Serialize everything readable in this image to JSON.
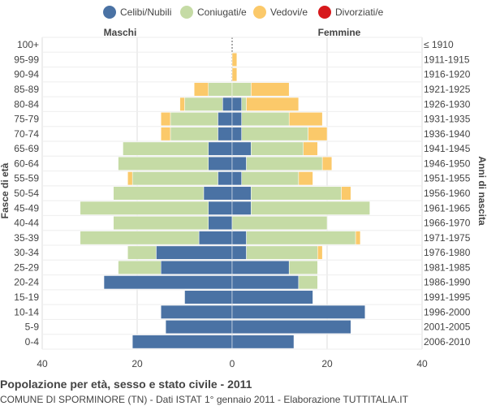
{
  "chart_data": {
    "type": "bar",
    "orientation": "horizontal-population-pyramid",
    "title": "Popolazione per età, sesso e stato civile - 2011",
    "subtitle": "COMUNE DI SPORMINORE (TN) - Dati ISTAT 1° gennaio 2011 - Elaborazione TUTTITALIA.IT",
    "ylabel_left": "Fasce di età",
    "ylabel_right": "Anni di nascita",
    "left_side_label": "Maschi",
    "right_side_label": "Femmine",
    "x_ticks": [
      "40",
      "20",
      "0",
      "20",
      "40"
    ],
    "xlim": [
      -40,
      40
    ],
    "grid": true,
    "legend_position": "top",
    "categories": [
      "100+",
      "95-99",
      "90-94",
      "85-89",
      "80-84",
      "75-79",
      "70-74",
      "65-69",
      "60-64",
      "55-59",
      "50-54",
      "45-49",
      "40-44",
      "35-39",
      "30-34",
      "25-29",
      "20-24",
      "15-19",
      "10-14",
      "5-9",
      "0-4"
    ],
    "birth_years": [
      "≤ 1910",
      "1911-1915",
      "1916-1920",
      "1921-1925",
      "1926-1930",
      "1931-1935",
      "1936-1940",
      "1941-1945",
      "1946-1950",
      "1951-1955",
      "1956-1960",
      "1961-1965",
      "1966-1970",
      "1971-1975",
      "1976-1980",
      "1981-1985",
      "1986-1990",
      "1991-1995",
      "1996-2000",
      "2001-2005",
      "2006-2010"
    ],
    "series": [
      {
        "name": "Celibi/Nubili",
        "color": "#4a72a4",
        "male": [
          0,
          0,
          0,
          0,
          2,
          3,
          3,
          5,
          5,
          3,
          6,
          5,
          5,
          7,
          16,
          15,
          27,
          10,
          15,
          14,
          21
        ],
        "female": [
          0,
          0,
          0,
          0,
          2,
          2,
          2,
          4,
          3,
          2,
          4,
          4,
          0,
          3,
          3,
          12,
          14,
          17,
          28,
          25,
          13
        ]
      },
      {
        "name": "Coniugati/e",
        "color": "#c5dba5",
        "male": [
          0,
          0,
          0,
          5,
          8,
          10,
          10,
          18,
          19,
          18,
          19,
          27,
          20,
          25,
          6,
          9,
          0,
          0,
          0,
          0,
          0
        ],
        "female": [
          0,
          0,
          0,
          4,
          1,
          10,
          14,
          11,
          16,
          12,
          19,
          25,
          20,
          23,
          15,
          6,
          4,
          0,
          0,
          0,
          0
        ]
      },
      {
        "name": "Vedovi/e",
        "color": "#fbc96a",
        "male": [
          0,
          0,
          0,
          3,
          1,
          2,
          2,
          0,
          0,
          1,
          0,
          0,
          0,
          0,
          0,
          0,
          0,
          0,
          0,
          0,
          0
        ],
        "female": [
          0,
          1,
          1,
          8,
          11,
          7,
          4,
          3,
          2,
          3,
          2,
          0,
          0,
          1,
          1,
          0,
          0,
          0,
          0,
          0,
          0
        ]
      },
      {
        "name": "Divorziati/e",
        "color": "#d7191c",
        "male": [
          0,
          0,
          0,
          0,
          0,
          0,
          0,
          0,
          0,
          0,
          0,
          0,
          0,
          0,
          0,
          0,
          0,
          0,
          0,
          0,
          0
        ],
        "female": [
          0,
          0,
          0,
          0,
          0,
          0,
          0,
          0,
          0,
          0,
          0,
          0,
          0,
          0,
          0,
          0,
          0,
          0,
          0,
          0,
          0
        ]
      }
    ]
  }
}
